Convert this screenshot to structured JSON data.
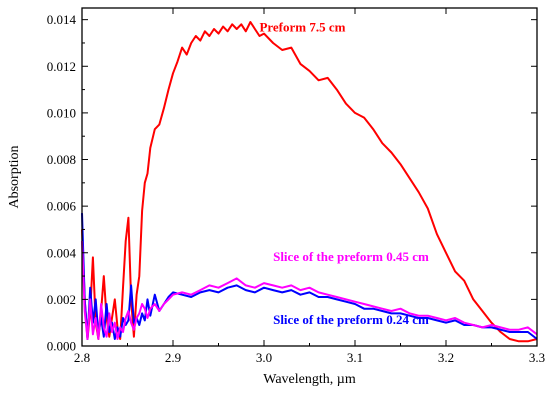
{
  "chart_data": {
    "type": "line",
    "xlabel": "Wavelength, µm",
    "ylabel": "Absorption",
    "xlim": [
      2.8,
      3.3
    ],
    "ylim": [
      0.0,
      0.0145
    ],
    "x_ticks": [
      "2.8",
      "2.9",
      "3.0",
      "3.1",
      "3.2",
      "3.3"
    ],
    "x_tick_values": [
      2.8,
      2.9,
      3.0,
      3.1,
      3.2,
      3.3
    ],
    "y_ticks": [
      "0.000",
      "0.002",
      "0.004",
      "0.006",
      "0.008",
      "0.010",
      "0.012",
      "0.014"
    ],
    "y_tick_values": [
      0.0,
      0.002,
      0.004,
      0.006,
      0.008,
      0.01,
      0.012,
      0.014
    ],
    "series": [
      {
        "name": "Preform 7.5 cm",
        "color": "#ff0000",
        "label_anchor": [
          2.995,
          0.0135
        ],
        "x": [
          2.8,
          2.803,
          2.806,
          2.809,
          2.812,
          2.815,
          2.818,
          2.821,
          2.824,
          2.827,
          2.83,
          2.833,
          2.836,
          2.839,
          2.842,
          2.845,
          2.848,
          2.851,
          2.854,
          2.857,
          2.86,
          2.863,
          2.866,
          2.869,
          2.872,
          2.875,
          2.88,
          2.885,
          2.89,
          2.895,
          2.9,
          2.905,
          2.91,
          2.915,
          2.92,
          2.925,
          2.93,
          2.935,
          2.94,
          2.945,
          2.95,
          2.955,
          2.96,
          2.965,
          2.97,
          2.975,
          2.98,
          2.985,
          2.99,
          2.995,
          3.0,
          3.01,
          3.02,
          3.03,
          3.04,
          3.05,
          3.06,
          3.07,
          3.08,
          3.09,
          3.1,
          3.11,
          3.12,
          3.13,
          3.14,
          3.15,
          3.16,
          3.17,
          3.18,
          3.19,
          3.2,
          3.21,
          3.22,
          3.23,
          3.24,
          3.25,
          3.26,
          3.27,
          3.28,
          3.29,
          3.3
        ],
        "y": [
          0.005,
          0.002,
          0.0003,
          0.0015,
          0.0038,
          0.001,
          0.0003,
          0.0015,
          0.003,
          0.0012,
          0.0004,
          0.0012,
          0.002,
          0.0008,
          0.0003,
          0.0025,
          0.0045,
          0.0055,
          0.002,
          0.0004,
          0.0022,
          0.003,
          0.0058,
          0.007,
          0.0074,
          0.0085,
          0.0093,
          0.0095,
          0.0102,
          0.011,
          0.0117,
          0.0122,
          0.0128,
          0.0125,
          0.013,
          0.0133,
          0.0131,
          0.0135,
          0.0133,
          0.0136,
          0.0134,
          0.0137,
          0.0135,
          0.0138,
          0.0136,
          0.0138,
          0.0135,
          0.0139,
          0.0136,
          0.0133,
          0.0134,
          0.013,
          0.0127,
          0.0128,
          0.0121,
          0.0118,
          0.0114,
          0.0115,
          0.011,
          0.0104,
          0.01,
          0.0098,
          0.0093,
          0.0087,
          0.0083,
          0.0078,
          0.0072,
          0.0066,
          0.0059,
          0.0048,
          0.004,
          0.0032,
          0.0028,
          0.002,
          0.0015,
          0.001,
          0.0006,
          0.0003,
          0.0002,
          0.0002,
          0.0003
        ]
      },
      {
        "name": "Slice of the preform 0.45 cm",
        "color": "#ff00ff",
        "label_anchor": [
          3.01,
          0.00365
        ],
        "x": [
          2.8,
          2.803,
          2.806,
          2.809,
          2.812,
          2.815,
          2.818,
          2.821,
          2.824,
          2.827,
          2.83,
          2.833,
          2.836,
          2.839,
          2.842,
          2.845,
          2.848,
          2.851,
          2.854,
          2.857,
          2.86,
          2.863,
          2.866,
          2.869,
          2.872,
          2.875,
          2.88,
          2.885,
          2.89,
          2.895,
          2.9,
          2.91,
          2.92,
          2.93,
          2.94,
          2.95,
          2.96,
          2.97,
          2.98,
          2.99,
          3.0,
          3.01,
          3.02,
          3.03,
          3.04,
          3.05,
          3.06,
          3.07,
          3.08,
          3.09,
          3.1,
          3.11,
          3.12,
          3.13,
          3.14,
          3.15,
          3.16,
          3.17,
          3.18,
          3.19,
          3.2,
          3.21,
          3.22,
          3.23,
          3.24,
          3.25,
          3.26,
          3.27,
          3.28,
          3.29,
          3.3
        ],
        "y": [
          0.0045,
          0.0015,
          0.0003,
          0.002,
          0.0005,
          0.0012,
          0.0003,
          0.0018,
          0.0008,
          0.0004,
          0.0014,
          0.0006,
          0.001,
          0.0003,
          0.0008,
          0.0006,
          0.0012,
          0.0015,
          0.001,
          0.0007,
          0.0012,
          0.0014,
          0.0018,
          0.0016,
          0.0012,
          0.0016,
          0.0018,
          0.0015,
          0.0018,
          0.002,
          0.0022,
          0.0023,
          0.0022,
          0.0024,
          0.0026,
          0.0025,
          0.0027,
          0.0029,
          0.0026,
          0.0025,
          0.0027,
          0.0026,
          0.0025,
          0.0026,
          0.0024,
          0.0025,
          0.0023,
          0.0022,
          0.0021,
          0.002,
          0.0019,
          0.0018,
          0.0017,
          0.0016,
          0.0015,
          0.0016,
          0.0014,
          0.0013,
          0.0013,
          0.0012,
          0.0011,
          0.0012,
          0.001,
          0.0009,
          0.0008,
          0.0009,
          0.0008,
          0.0007,
          0.0007,
          0.0008,
          0.0005
        ]
      },
      {
        "name": "Slice of the preform 0.24 cm",
        "color": "#0000ff",
        "label_anchor": [
          3.01,
          0.00095
        ],
        "x": [
          2.8,
          2.803,
          2.806,
          2.809,
          2.812,
          2.815,
          2.818,
          2.821,
          2.824,
          2.827,
          2.83,
          2.833,
          2.836,
          2.839,
          2.842,
          2.845,
          2.848,
          2.851,
          2.854,
          2.857,
          2.86,
          2.863,
          2.866,
          2.869,
          2.872,
          2.875,
          2.88,
          2.885,
          2.89,
          2.895,
          2.9,
          2.91,
          2.92,
          2.93,
          2.94,
          2.95,
          2.96,
          2.97,
          2.98,
          2.99,
          3.0,
          3.01,
          3.02,
          3.03,
          3.04,
          3.05,
          3.06,
          3.07,
          3.08,
          3.09,
          3.1,
          3.11,
          3.12,
          3.13,
          3.14,
          3.15,
          3.16,
          3.17,
          3.18,
          3.19,
          3.2,
          3.21,
          3.22,
          3.23,
          3.24,
          3.25,
          3.26,
          3.27,
          3.28,
          3.29,
          3.3
        ],
        "y": [
          0.0057,
          0.002,
          0.0003,
          0.0025,
          0.001,
          0.002,
          0.0005,
          0.0012,
          0.0004,
          0.0018,
          0.0006,
          0.001,
          0.0003,
          0.0008,
          0.0004,
          0.0012,
          0.0009,
          0.0011,
          0.0026,
          0.001,
          0.0012,
          0.0009,
          0.0014,
          0.0011,
          0.002,
          0.0013,
          0.0022,
          0.0015,
          0.0018,
          0.0021,
          0.0023,
          0.0022,
          0.0021,
          0.0023,
          0.0024,
          0.0023,
          0.0025,
          0.0026,
          0.0024,
          0.0023,
          0.0025,
          0.0024,
          0.0023,
          0.0024,
          0.0022,
          0.0023,
          0.0021,
          0.0021,
          0.002,
          0.0019,
          0.0018,
          0.0016,
          0.0016,
          0.0015,
          0.0014,
          0.0014,
          0.0013,
          0.0012,
          0.0012,
          0.0011,
          0.001,
          0.0011,
          0.0009,
          0.0009,
          0.0008,
          0.0008,
          0.0007,
          0.0006,
          0.0006,
          0.0006,
          0.0003
        ]
      }
    ]
  }
}
